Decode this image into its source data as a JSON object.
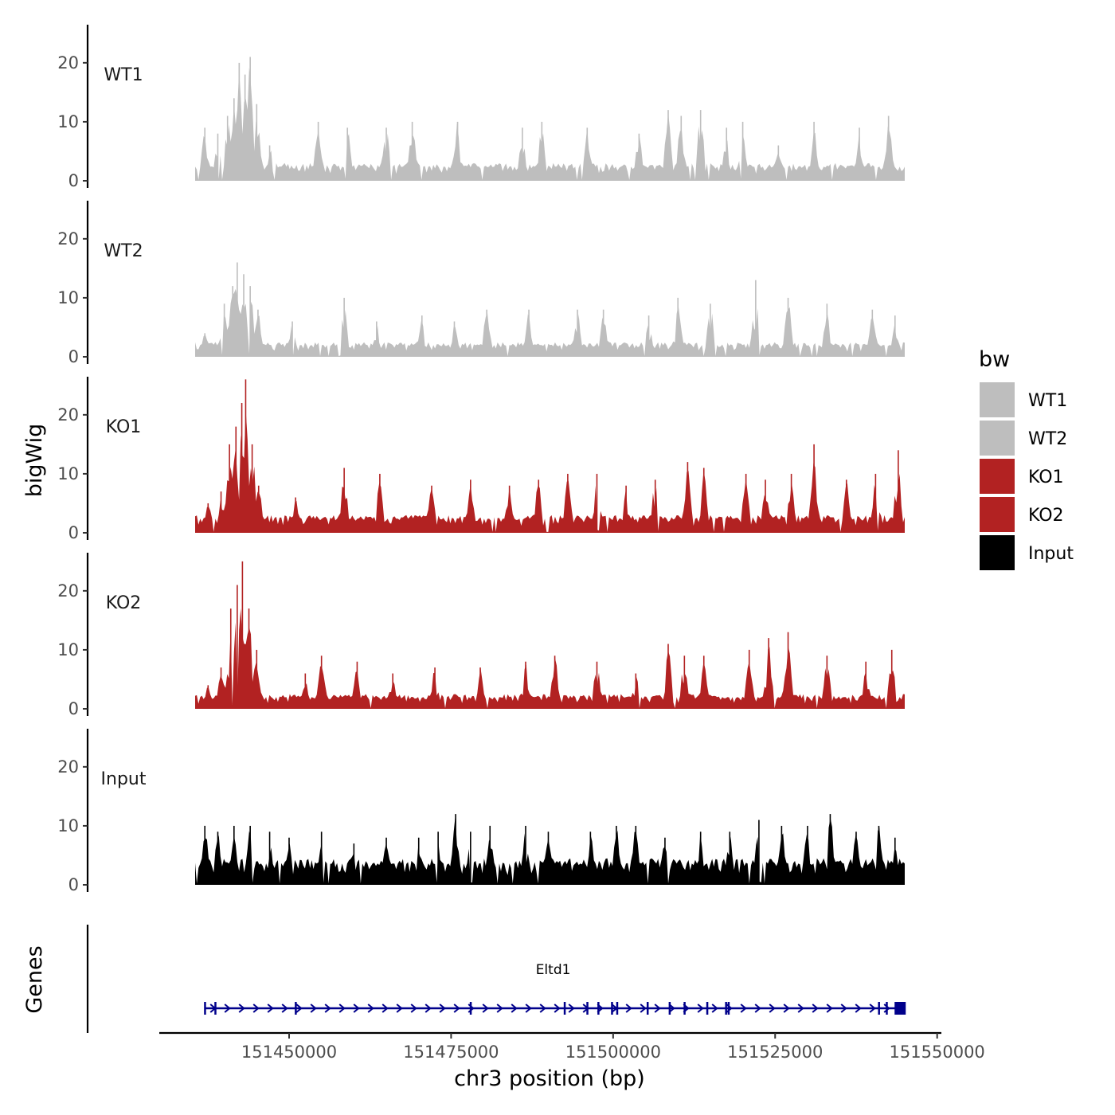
{
  "chart_data": {
    "type": "area",
    "title": "",
    "ylabel": "bigWig",
    "xlabel": "chr3 position (bp)",
    "xlim": [
      151435500,
      151545000
    ],
    "ylim": [
      0,
      27
    ],
    "y_ticks": [
      0,
      10,
      20
    ],
    "x_ticks": [
      151450000,
      151475000,
      151500000,
      151525000,
      151550000
    ],
    "x_tick_labels": [
      "151450000",
      "151475000",
      "151500000",
      "151525000",
      "151550000"
    ],
    "legend": {
      "title": "bw",
      "position": "right",
      "entries": [
        {
          "label": "WT1",
          "color": "#bebebe"
        },
        {
          "label": "WT2",
          "color": "#bebebe"
        },
        {
          "label": "KO1",
          "color": "#b22222"
        },
        {
          "label": "KO2",
          "color": "#b22222"
        },
        {
          "label": "Input",
          "color": "#000000"
        }
      ]
    },
    "series": [
      {
        "name": "WT1",
        "color": "#bebebe",
        "baseline": 3,
        "peaks": [
          {
            "x": 151437000,
            "y": 9
          },
          {
            "x": 151439000,
            "y": 8
          },
          {
            "x": 151440500,
            "y": 11
          },
          {
            "x": 151441500,
            "y": 14
          },
          {
            "x": 151442300,
            "y": 20
          },
          {
            "x": 151443200,
            "y": 18
          },
          {
            "x": 151444000,
            "y": 21
          },
          {
            "x": 151445000,
            "y": 13
          },
          {
            "x": 151447000,
            "y": 6
          },
          {
            "x": 151454500,
            "y": 10
          },
          {
            "x": 151459000,
            "y": 9
          },
          {
            "x": 151465000,
            "y": 9
          },
          {
            "x": 151469000,
            "y": 10
          },
          {
            "x": 151476000,
            "y": 10
          },
          {
            "x": 151486000,
            "y": 9
          },
          {
            "x": 151489000,
            "y": 10
          },
          {
            "x": 151496000,
            "y": 9
          },
          {
            "x": 151504000,
            "y": 8
          },
          {
            "x": 151508500,
            "y": 12
          },
          {
            "x": 151510500,
            "y": 11
          },
          {
            "x": 151513500,
            "y": 12
          },
          {
            "x": 151517500,
            "y": 9
          },
          {
            "x": 151520000,
            "y": 10
          },
          {
            "x": 151525500,
            "y": 6
          },
          {
            "x": 151531000,
            "y": 10
          },
          {
            "x": 151538000,
            "y": 9
          },
          {
            "x": 151542500,
            "y": 11
          }
        ]
      },
      {
        "name": "WT2",
        "color": "#bebebe",
        "baseline": 2.5,
        "peaks": [
          {
            "x": 151437000,
            "y": 4
          },
          {
            "x": 151440000,
            "y": 9
          },
          {
            "x": 151441300,
            "y": 12
          },
          {
            "x": 151442000,
            "y": 16
          },
          {
            "x": 151443000,
            "y": 14
          },
          {
            "x": 151444000,
            "y": 12
          },
          {
            "x": 151445200,
            "y": 8
          },
          {
            "x": 151450500,
            "y": 6
          },
          {
            "x": 151458500,
            "y": 10
          },
          {
            "x": 151463500,
            "y": 6
          },
          {
            "x": 151470500,
            "y": 7
          },
          {
            "x": 151475500,
            "y": 6
          },
          {
            "x": 151480500,
            "y": 8
          },
          {
            "x": 151487000,
            "y": 8
          },
          {
            "x": 151494500,
            "y": 8
          },
          {
            "x": 151498500,
            "y": 8
          },
          {
            "x": 151505500,
            "y": 7
          },
          {
            "x": 151510000,
            "y": 10
          },
          {
            "x": 151515000,
            "y": 9
          },
          {
            "x": 151522000,
            "y": 13
          },
          {
            "x": 151527000,
            "y": 10
          },
          {
            "x": 151533000,
            "y": 9
          },
          {
            "x": 151540000,
            "y": 8
          },
          {
            "x": 151543500,
            "y": 7
          }
        ]
      },
      {
        "name": "KO1",
        "color": "#b22222",
        "baseline": 3,
        "peaks": [
          {
            "x": 151437500,
            "y": 5
          },
          {
            "x": 151439500,
            "y": 7
          },
          {
            "x": 151440800,
            "y": 15
          },
          {
            "x": 151441800,
            "y": 18
          },
          {
            "x": 151442700,
            "y": 22
          },
          {
            "x": 151443300,
            "y": 26
          },
          {
            "x": 151444300,
            "y": 15
          },
          {
            "x": 151445300,
            "y": 8
          },
          {
            "x": 151451000,
            "y": 6
          },
          {
            "x": 151458500,
            "y": 11
          },
          {
            "x": 151464000,
            "y": 10
          },
          {
            "x": 151472000,
            "y": 8
          },
          {
            "x": 151478000,
            "y": 9
          },
          {
            "x": 151484000,
            "y": 8
          },
          {
            "x": 151488500,
            "y": 9
          },
          {
            "x": 151493000,
            "y": 10
          },
          {
            "x": 151497500,
            "y": 10
          },
          {
            "x": 151502000,
            "y": 8
          },
          {
            "x": 151506500,
            "y": 9
          },
          {
            "x": 151511500,
            "y": 12
          },
          {
            "x": 151514000,
            "y": 11
          },
          {
            "x": 151520500,
            "y": 10
          },
          {
            "x": 151523500,
            "y": 9
          },
          {
            "x": 151527500,
            "y": 10
          },
          {
            "x": 151531000,
            "y": 15
          },
          {
            "x": 151536000,
            "y": 9
          },
          {
            "x": 151540500,
            "y": 10
          },
          {
            "x": 151544000,
            "y": 14
          }
        ]
      },
      {
        "name": "KO2",
        "color": "#b22222",
        "baseline": 2.5,
        "peaks": [
          {
            "x": 151437500,
            "y": 4
          },
          {
            "x": 151439500,
            "y": 7
          },
          {
            "x": 151441000,
            "y": 17
          },
          {
            "x": 151442000,
            "y": 21
          },
          {
            "x": 151442800,
            "y": 25
          },
          {
            "x": 151443800,
            "y": 17
          },
          {
            "x": 151445000,
            "y": 10
          },
          {
            "x": 151452500,
            "y": 6
          },
          {
            "x": 151455000,
            "y": 9
          },
          {
            "x": 151460500,
            "y": 8
          },
          {
            "x": 151466000,
            "y": 6
          },
          {
            "x": 151472500,
            "y": 7
          },
          {
            "x": 151479500,
            "y": 7
          },
          {
            "x": 151486500,
            "y": 8
          },
          {
            "x": 151491000,
            "y": 9
          },
          {
            "x": 151497500,
            "y": 8
          },
          {
            "x": 151503500,
            "y": 6
          },
          {
            "x": 151508500,
            "y": 11
          },
          {
            "x": 151511000,
            "y": 9
          },
          {
            "x": 151514000,
            "y": 9
          },
          {
            "x": 151521000,
            "y": 10
          },
          {
            "x": 151524000,
            "y": 12
          },
          {
            "x": 151527000,
            "y": 13
          },
          {
            "x": 151533000,
            "y": 9
          },
          {
            "x": 151539000,
            "y": 8
          },
          {
            "x": 151543000,
            "y": 10
          }
        ]
      },
      {
        "name": "Input",
        "color": "#000000",
        "baseline": 4.5,
        "peaks": [
          {
            "x": 151437000,
            "y": 10
          },
          {
            "x": 151439000,
            "y": 9
          },
          {
            "x": 151441500,
            "y": 10
          },
          {
            "x": 151444000,
            "y": 10
          },
          {
            "x": 151447000,
            "y": 9
          },
          {
            "x": 151450000,
            "y": 8
          },
          {
            "x": 151455000,
            "y": 9
          },
          {
            "x": 151460000,
            "y": 7
          },
          {
            "x": 151465000,
            "y": 8
          },
          {
            "x": 151470000,
            "y": 8
          },
          {
            "x": 151473000,
            "y": 9
          },
          {
            "x": 151475700,
            "y": 12
          },
          {
            "x": 151478000,
            "y": 9
          },
          {
            "x": 151481000,
            "y": 10
          },
          {
            "x": 151486500,
            "y": 10
          },
          {
            "x": 151490000,
            "y": 9
          },
          {
            "x": 151496500,
            "y": 9
          },
          {
            "x": 151500500,
            "y": 10
          },
          {
            "x": 151503500,
            "y": 10
          },
          {
            "x": 151508000,
            "y": 8
          },
          {
            "x": 151513500,
            "y": 9
          },
          {
            "x": 151518000,
            "y": 9
          },
          {
            "x": 151522500,
            "y": 11
          },
          {
            "x": 151526000,
            "y": 10
          },
          {
            "x": 151530000,
            "y": 10
          },
          {
            "x": 151533500,
            "y": 12
          },
          {
            "x": 151537500,
            "y": 9
          },
          {
            "x": 151541000,
            "y": 10
          },
          {
            "x": 151543500,
            "y": 8
          }
        ]
      }
    ],
    "gene_track": {
      "label": "Genes",
      "genes": [
        {
          "name": "Eltd1",
          "start": 151437000,
          "end": 151544500,
          "strand": "+",
          "color": "#00008b",
          "exons": [
            151437000,
            151438600,
            151451000,
            151478000,
            151492500,
            151496000,
            151497700,
            151499800,
            151500600,
            151505300,
            151508700,
            151511000,
            151514500,
            151517400,
            151517800,
            151541000,
            151542200,
            151543800
          ]
        }
      ]
    }
  }
}
